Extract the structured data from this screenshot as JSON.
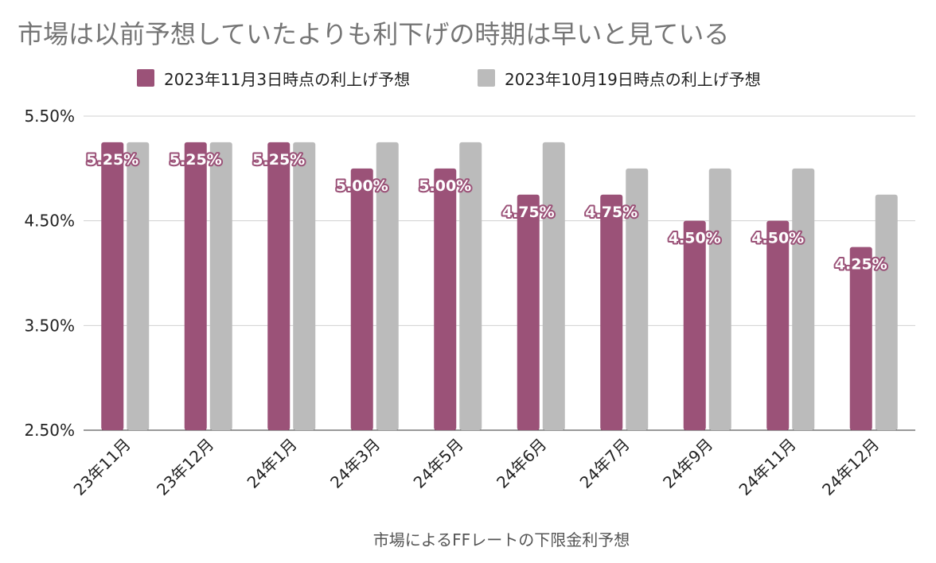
{
  "chart_data": {
    "type": "bar",
    "title": "市場は以前予想していたよりも利下げの時期は早いと見ている",
    "xlabel": "市場によるFFレートの下限金利予想",
    "ylabel": "",
    "ylim": [
      2.5,
      5.5
    ],
    "yticks": [
      "5.50%",
      "4.50%",
      "3.50%",
      "2.50%"
    ],
    "ytick_values": [
      5.5,
      4.5,
      3.5,
      2.5
    ],
    "grid": true,
    "legend_position": "top",
    "categories": [
      "23年11月",
      "23年12月",
      "24年1月",
      "24年3月",
      "24年5月",
      "24年6月",
      "24年7月",
      "24年9月",
      "24年11月",
      "24年12月"
    ],
    "series": [
      {
        "name": "2023年11月3日時点の利上げ予想",
        "color": "#9b5278",
        "values": [
          5.25,
          5.25,
          5.25,
          5.0,
          5.0,
          4.75,
          4.75,
          4.5,
          4.5,
          4.25
        ],
        "data_labels": [
          "5.25%",
          "5.25%",
          "5.25%",
          "5.00%",
          "5.00%",
          "4.75%",
          "4.75%",
          "4.50%",
          "4.50%",
          "4.25%"
        ]
      },
      {
        "name": "2023年10月19日時点の利上げ予想",
        "color": "#bbbbbb",
        "values": [
          5.25,
          5.25,
          5.25,
          5.25,
          5.25,
          5.25,
          5.0,
          5.0,
          5.0,
          4.75
        ]
      }
    ]
  }
}
